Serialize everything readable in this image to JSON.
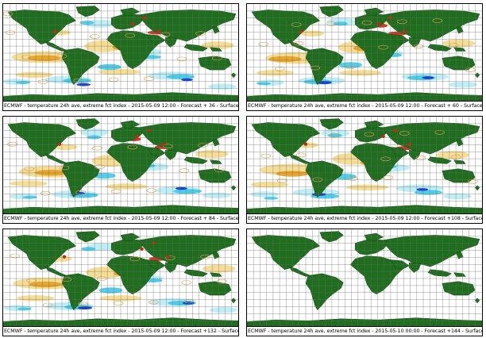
{
  "palette": {
    "land": "#1e6e1e",
    "grid": "#6a6a6a",
    "warm_light": "#f4d98a",
    "warm_mid": "#e8a020",
    "warm_contour": "#e0a050",
    "hot": "#cc2010",
    "cool_light": "#b8ecf6",
    "cool_mid": "#40c8e8",
    "cold": "#1030c0",
    "cold_core": "#0a1a90"
  },
  "panels": [
    {
      "caption": "ECMWF - temperature 24h ave, extreme fct index - 2015-05-09 12:00 - Forecast + 36 - Surface",
      "has_anomaly": true
    },
    {
      "caption": "ECMWF - temperature 24h ave, extreme fct index - 2015-05-09 12:00 - Forecast + 60 - Surface",
      "has_anomaly": true
    },
    {
      "caption": "ECMWF - temperature 24h ave, extreme fct index - 2015-05-09 12:00 - Forecast + 84 - Surface",
      "has_anomaly": true
    },
    {
      "caption": "ECMWF - temperature 24h ave, extreme fct index - 2015-05-09 12:00 - Forecast +108 - Surface",
      "has_anomaly": true
    },
    {
      "caption": "ECMWF - temperature 24h ave, extreme fct index - 2015-05-09 12:00 - Forecast +132 - Surface",
      "has_anomaly": true
    },
    {
      "caption": "ECMWF - temperature 24h ave, extreme fct index - 2015-05-10 00:00 - Forecast +144 - Surface",
      "has_anomaly": false
    }
  ]
}
